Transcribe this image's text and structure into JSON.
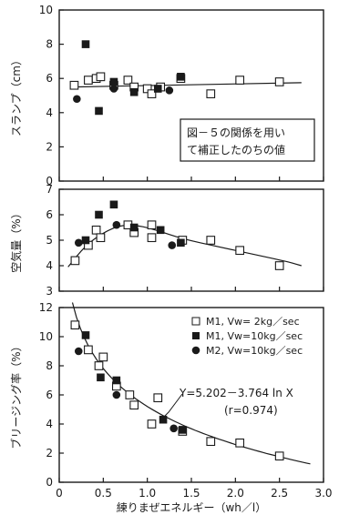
{
  "chart_data": [
    {
      "type": "scatter",
      "ylabel": "スランプ（cm）",
      "xlim": [
        0,
        3.0
      ],
      "ylim": [
        0,
        10
      ],
      "yticks": [
        "0",
        "2",
        "4",
        "6",
        "8",
        "10"
      ],
      "annotation": [
        "図－５の関係を用い",
        "て補正したのちの値"
      ],
      "series": [
        {
          "marker": "open-square",
          "x": [
            0.17,
            0.33,
            0.42,
            0.47,
            0.62,
            0.78,
            0.85,
            1.0,
            1.05,
            1.15,
            1.38,
            1.72,
            2.05,
            2.5
          ],
          "y": [
            5.6,
            5.9,
            6.0,
            6.1,
            5.6,
            5.9,
            5.5,
            5.4,
            5.1,
            5.5,
            6.0,
            5.1,
            5.9,
            5.8
          ]
        },
        {
          "marker": "filled-square",
          "x": [
            0.3,
            0.45,
            0.62,
            0.85,
            1.12,
            1.38
          ],
          "y": [
            8.0,
            4.1,
            5.8,
            5.2,
            5.4,
            6.1
          ]
        },
        {
          "marker": "filled-circle",
          "x": [
            0.2,
            0.62,
            1.25
          ],
          "y": [
            4.8,
            5.4,
            5.3
          ]
        }
      ],
      "fit": {
        "x": [
          0.15,
          2.75
        ],
        "y": [
          5.5,
          5.75
        ]
      }
    },
    {
      "type": "scatter",
      "ylabel": "空気量（%）",
      "xlim": [
        0,
        3.0
      ],
      "ylim": [
        3,
        7
      ],
      "yticks": [
        "3",
        "4",
        "5",
        "6",
        "7"
      ],
      "series": [
        {
          "marker": "open-square",
          "x": [
            0.18,
            0.33,
            0.42,
            0.47,
            0.78,
            0.85,
            1.05,
            1.05,
            1.4,
            1.72,
            2.05,
            2.5
          ],
          "y": [
            4.2,
            4.8,
            5.4,
            5.1,
            5.6,
            5.3,
            5.6,
            5.1,
            5.0,
            5.0,
            4.6,
            4.0
          ]
        },
        {
          "marker": "filled-square",
          "x": [
            0.3,
            0.45,
            0.62,
            0.85,
            1.15,
            1.38
          ],
          "y": [
            5.0,
            6.0,
            6.4,
            5.5,
            5.4,
            4.9
          ]
        },
        {
          "marker": "filled-circle",
          "x": [
            0.22,
            0.65,
            1.28
          ],
          "y": [
            4.9,
            5.6,
            4.8
          ]
        }
      ],
      "fit": {
        "x": [
          0.1,
          0.3,
          0.5,
          0.7,
          0.9,
          1.1,
          1.4,
          1.8,
          2.2,
          2.6,
          2.75
        ],
        "y": [
          3.95,
          4.8,
          5.3,
          5.6,
          5.58,
          5.4,
          5.05,
          4.75,
          4.45,
          4.15,
          4.0
        ]
      }
    },
    {
      "type": "scatter",
      "ylabel": "ブリージング率（%）",
      "xlabel": "練りまぜエネルギー（wh／l）",
      "xlim": [
        0,
        3.0
      ],
      "ylim": [
        0,
        12
      ],
      "yticks": [
        "0",
        "2",
        "4",
        "6",
        "8",
        "10",
        "12"
      ],
      "xticks": [
        "0",
        "0.5",
        "1.0",
        "1.5",
        "2.0",
        "2.5",
        "3.0"
      ],
      "legend": [
        {
          "marker": "open-square",
          "label": "M1, Vw=  2kg／sec"
        },
        {
          "marker": "filled-square",
          "label": "M1, Vw=10kg／sec"
        },
        {
          "marker": "filled-circle",
          "label": "M2, Vw=10kg／sec"
        }
      ],
      "equation": "Y=5.202－3.764 ln X",
      "r_value": "(r=0.974)",
      "series": [
        {
          "marker": "open-square",
          "x": [
            0.18,
            0.33,
            0.45,
            0.5,
            0.65,
            0.8,
            0.85,
            1.05,
            1.12,
            1.4,
            1.72,
            2.05,
            2.5
          ],
          "y": [
            10.8,
            9.1,
            8.0,
            8.6,
            6.6,
            6.0,
            5.3,
            4.0,
            5.8,
            3.5,
            2.8,
            2.7,
            1.8
          ]
        },
        {
          "marker": "filled-square",
          "x": [
            0.3,
            0.47,
            0.65,
            1.18,
            1.4
          ],
          "y": [
            10.1,
            7.2,
            7.0,
            4.3,
            3.6
          ]
        },
        {
          "marker": "filled-circle",
          "x": [
            0.22,
            0.65,
            1.3
          ],
          "y": [
            9.0,
            6.0,
            3.7
          ]
        }
      ],
      "fit": {
        "equation": {
          "a": 5.202,
          "b": -3.764
        },
        "xrange": [
          0.15,
          2.85
        ]
      }
    }
  ]
}
